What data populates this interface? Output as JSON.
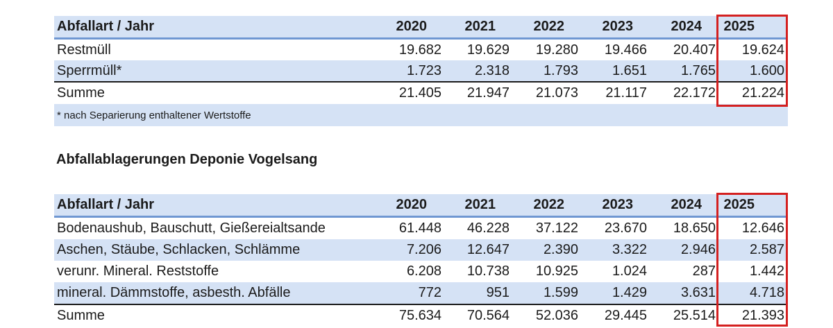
{
  "table1": {
    "header": {
      "label": "Abfallart / Jahr",
      "years": [
        "2020",
        "2021",
        "2022",
        "2023",
        "2024",
        "2025"
      ]
    },
    "rows": [
      {
        "label": "Restmüll",
        "values": [
          "19.682",
          "19.629",
          "19.280",
          "19.466",
          "20.407",
          "19.624"
        ]
      },
      {
        "label": "Sperrmüll*",
        "values": [
          "1.723",
          "2.318",
          "1.793",
          "1.651",
          "1.765",
          "1.600"
        ]
      },
      {
        "label": "Summe",
        "values": [
          "21.405",
          "21.947",
          "21.073",
          "21.117",
          "22.172",
          "21.224"
        ]
      }
    ],
    "footnote": "* nach Separierung enthaltener Wertstoffe"
  },
  "section_title": "Abfallablagerungen Deponie Vogelsang",
  "table2": {
    "header": {
      "label": "Abfallart / Jahr",
      "years": [
        "2020",
        "2021",
        "2022",
        "2023",
        "2024",
        "2025"
      ]
    },
    "rows": [
      {
        "label": "Bodenaushub, Bauschutt, Gießereialtsande",
        "values": [
          "61.448",
          "46.228",
          "37.122",
          "23.670",
          "18.650",
          "12.646"
        ]
      },
      {
        "label": "Aschen, Stäube, Schlacken, Schlämme",
        "values": [
          "7.206",
          "12.647",
          "2.390",
          "3.322",
          "2.946",
          "2.587"
        ]
      },
      {
        "label": "verunr. Mineral. Reststoffe",
        "values": [
          "6.208",
          "10.738",
          "10.925",
          "1.024",
          "287",
          "1.442"
        ]
      },
      {
        "label": "mineral. Dämmstoffe, asbesth. Abfälle",
        "values": [
          "772",
          "951",
          "1.599",
          "1.429",
          "3.631",
          "4.718"
        ]
      },
      {
        "label": "Summe",
        "values": [
          "75.634",
          "70.564",
          "52.036",
          "29.445",
          "25.514",
          "21.393"
        ]
      }
    ]
  },
  "colors": {
    "header_bg": "#d5e2f5",
    "header_rule": "#6f97d2",
    "highlight": "#d42020"
  }
}
